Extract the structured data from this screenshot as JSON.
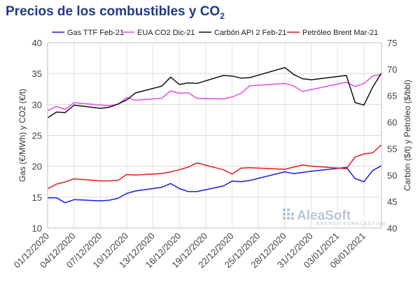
{
  "title": {
    "main": "Precios de los combustibles y CO",
    "subscript": "2"
  },
  "watermark": {
    "brand": "AleaSoft",
    "tagline": "ENERGY FORECASTING"
  },
  "chart_data": {
    "type": "line",
    "dates": [
      "01/12/2020",
      "02/12/2020",
      "03/12/2020",
      "04/12/2020",
      "07/12/2020",
      "08/12/2020",
      "09/12/2020",
      "10/12/2020",
      "11/12/2020",
      "14/12/2020",
      "15/12/2020",
      "16/12/2020",
      "17/12/2020",
      "18/12/2020",
      "21/12/2020",
      "22/12/2020",
      "23/12/2020",
      "24/12/2020",
      "28/12/2020",
      "29/12/2020",
      "30/12/2020",
      "31/12/2020",
      "04/01/2021",
      "05/01/2021",
      "06/01/2021",
      "07/01/2021",
      "08/01/2021"
    ],
    "xticks": [
      "01/12/2020",
      "04/12/2020",
      "07/12/2020",
      "10/12/2020",
      "13/12/2020",
      "16/12/2020",
      "19/12/2020",
      "22/12/2020",
      "25/12/2020",
      "28/12/2020",
      "31/12/2020",
      "03/01/2021",
      "06/01/2021"
    ],
    "x_range": [
      "01/12/2020",
      "08/01/2021"
    ],
    "ylabel_left": "Gas (€/MWh) y CO2 (€/t)",
    "ylabel_right": "Carbón ($/t) y Petróleo ($/bbl)",
    "ylim_left": [
      10,
      40
    ],
    "ylim_right": [
      40,
      75
    ],
    "yticks_left": [
      10,
      15,
      20,
      25,
      30,
      35,
      40
    ],
    "yticks_right": [
      40,
      45,
      50,
      55,
      60,
      65,
      70,
      75
    ],
    "grid": {
      "horizontal": true,
      "vertical": true
    },
    "legend_position": "top",
    "series": [
      {
        "name": "Gas TTF Feb-21",
        "axis": "left",
        "color": "#1a1ae6",
        "values": [
          14.9,
          14.9,
          14.1,
          14.6,
          14.4,
          14.5,
          14.8,
          15.6,
          16.0,
          16.6,
          17.2,
          16.4,
          15.9,
          15.9,
          16.8,
          17.6,
          17.5,
          17.7,
          19.1,
          18.8,
          19.0,
          19.2,
          19.8,
          18.0,
          17.5,
          19.3,
          20.1
        ]
      },
      {
        "name": "EUA CO2 Dic-21",
        "axis": "left",
        "color": "#e64ae6",
        "values": [
          29.0,
          29.7,
          29.2,
          30.3,
          29.9,
          29.8,
          30.0,
          31.1,
          30.7,
          31.0,
          32.2,
          31.8,
          31.9,
          31.0,
          30.9,
          31.2,
          31.8,
          33.0,
          33.4,
          33.0,
          32.1,
          32.4,
          33.6,
          32.9,
          33.4,
          34.6,
          34.9
        ]
      },
      {
        "name": "Carbón API 2 Feb-21",
        "axis": "right",
        "color": "#111111",
        "values": [
          60.8,
          61.9,
          61.8,
          63.2,
          62.6,
          62.8,
          63.4,
          64.2,
          65.5,
          66.8,
          68.5,
          67.1,
          67.4,
          67.3,
          68.8,
          68.7,
          68.3,
          68.4,
          70.3,
          69.0,
          68.2,
          68.0,
          68.8,
          63.7,
          63.2,
          66.6,
          69.3
        ]
      },
      {
        "name": "Petróleo Brent Mar-21",
        "axis": "right",
        "color": "#e61a1a",
        "values": [
          47.4,
          48.3,
          48.7,
          49.3,
          48.9,
          48.9,
          49.0,
          50.1,
          50.0,
          50.3,
          50.6,
          51.0,
          51.5,
          52.3,
          51.0,
          50.2,
          51.3,
          51.4,
          51.1,
          51.5,
          51.9,
          51.7,
          51.2,
          53.4,
          54.0,
          54.2,
          55.7
        ]
      }
    ]
  }
}
